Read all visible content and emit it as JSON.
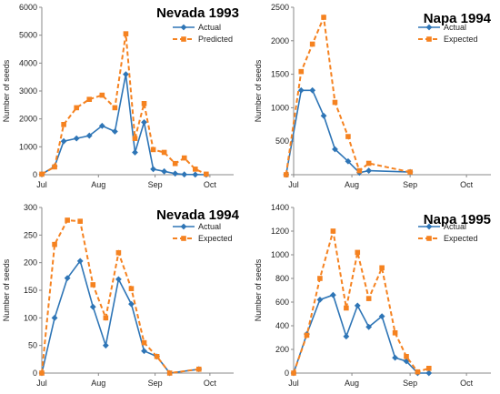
{
  "colors": {
    "actual": "#2E75B6",
    "predicted": "#F58220"
  },
  "chart_data": [
    {
      "type": "line",
      "title": "Nevada 1993",
      "ylabel": "Number of seeds",
      "ylim": [
        0,
        6000
      ],
      "yticks": [
        0,
        1000,
        2000,
        3000,
        4000,
        5000,
        6000
      ],
      "xlim": [
        0,
        105
      ],
      "xticks": [
        {
          "label": "Jul",
          "x": 0
        },
        {
          "label": "Aug",
          "x": 31
        },
        {
          "label": "Sep",
          "x": 62
        },
        {
          "label": "Oct",
          "x": 92
        }
      ],
      "legend": "top-right",
      "series": [
        {
          "name": "Actual",
          "style": "solid",
          "marker": "diamond",
          "x": [
            0,
            7,
            12,
            19,
            26,
            33,
            40,
            46,
            51,
            56,
            61,
            67,
            73,
            78,
            84,
            90
          ],
          "y": [
            20,
            300,
            1200,
            1300,
            1400,
            1750,
            1550,
            3600,
            800,
            1880,
            200,
            120,
            40,
            10,
            5,
            0
          ]
        },
        {
          "name": "Predicted",
          "style": "dashed",
          "marker": "square",
          "x": [
            0,
            7,
            12,
            19,
            26,
            33,
            40,
            46,
            51,
            56,
            61,
            67,
            73,
            78,
            84,
            90
          ],
          "y": [
            20,
            280,
            1800,
            2400,
            2700,
            2850,
            2400,
            5050,
            1300,
            2550,
            900,
            800,
            400,
            600,
            200,
            20
          ]
        }
      ]
    },
    {
      "type": "line",
      "title": "Napa 1994",
      "ylabel": "Number of seeds",
      "ylim": [
        0,
        2500
      ],
      "yticks": [
        0,
        500,
        1000,
        1500,
        2000,
        2500
      ],
      "xlim": [
        0,
        105
      ],
      "xticks": [
        {
          "label": "Jul",
          "x": 0
        },
        {
          "label": "Aug",
          "x": 31
        },
        {
          "label": "Sep",
          "x": 62
        },
        {
          "label": "Oct",
          "x": 92
        }
      ],
      "legend": "top-right",
      "series": [
        {
          "name": "Actual",
          "style": "solid",
          "marker": "diamond",
          "x": [
            -4,
            4,
            10,
            16,
            22,
            29,
            35,
            40,
            62
          ],
          "y": [
            0,
            1260,
            1260,
            880,
            380,
            200,
            30,
            60,
            40
          ]
        },
        {
          "name": "Expected",
          "style": "dashed",
          "marker": "square",
          "x": [
            -4,
            4,
            10,
            16,
            22,
            29,
            35,
            40,
            62
          ],
          "y": [
            0,
            1540,
            1950,
            2350,
            1080,
            570,
            60,
            170,
            40
          ]
        }
      ]
    },
    {
      "type": "line",
      "title": "Nevada 1994",
      "ylabel": "Number of seeds",
      "ylim": [
        0,
        300
      ],
      "yticks": [
        0,
        50,
        100,
        150,
        200,
        250,
        300
      ],
      "xlim": [
        0,
        105
      ],
      "xticks": [
        {
          "label": "Jul",
          "x": 0
        },
        {
          "label": "Aug",
          "x": 31
        },
        {
          "label": "Sep",
          "x": 62
        },
        {
          "label": "Oct",
          "x": 92
        }
      ],
      "legend": "top-right",
      "series": [
        {
          "name": "Actual",
          "style": "solid",
          "marker": "diamond",
          "x": [
            0,
            7,
            14,
            21,
            28,
            35,
            42,
            49,
            56,
            63,
            70,
            86
          ],
          "y": [
            0,
            100,
            172,
            203,
            120,
            50,
            170,
            125,
            40,
            30,
            0,
            7
          ]
        },
        {
          "name": "Expected",
          "style": "dashed",
          "marker": "square",
          "x": [
            0,
            7,
            14,
            21,
            28,
            35,
            42,
            49,
            56,
            63,
            70,
            86
          ],
          "y": [
            0,
            233,
            277,
            275,
            160,
            100,
            218,
            153,
            55,
            30,
            0,
            7
          ]
        }
      ]
    },
    {
      "type": "line",
      "title": "Napa 1995",
      "ylabel": "Number of seeds",
      "ylim": [
        0,
        1400
      ],
      "yticks": [
        0,
        200,
        400,
        600,
        800,
        1000,
        1200,
        1400
      ],
      "xlim": [
        0,
        105
      ],
      "xticks": [
        {
          "label": "Jul",
          "x": 0
        },
        {
          "label": "Aug",
          "x": 31
        },
        {
          "label": "Sep",
          "x": 62
        },
        {
          "label": "Oct",
          "x": 92
        }
      ],
      "legend": "top-right",
      "series": [
        {
          "name": "Actual",
          "style": "solid",
          "marker": "diamond",
          "x": [
            0,
            7,
            14,
            21,
            28,
            34,
            40,
            47,
            54,
            60,
            66,
            72
          ],
          "y": [
            0,
            330,
            620,
            660,
            310,
            570,
            390,
            480,
            130,
            100,
            0,
            0
          ]
        },
        {
          "name": "Expected",
          "style": "dashed",
          "marker": "square",
          "x": [
            0,
            7,
            14,
            21,
            28,
            34,
            40,
            47,
            54,
            60,
            66,
            72
          ],
          "y": [
            0,
            320,
            800,
            1200,
            550,
            1020,
            630,
            890,
            340,
            140,
            10,
            40
          ]
        }
      ]
    }
  ]
}
